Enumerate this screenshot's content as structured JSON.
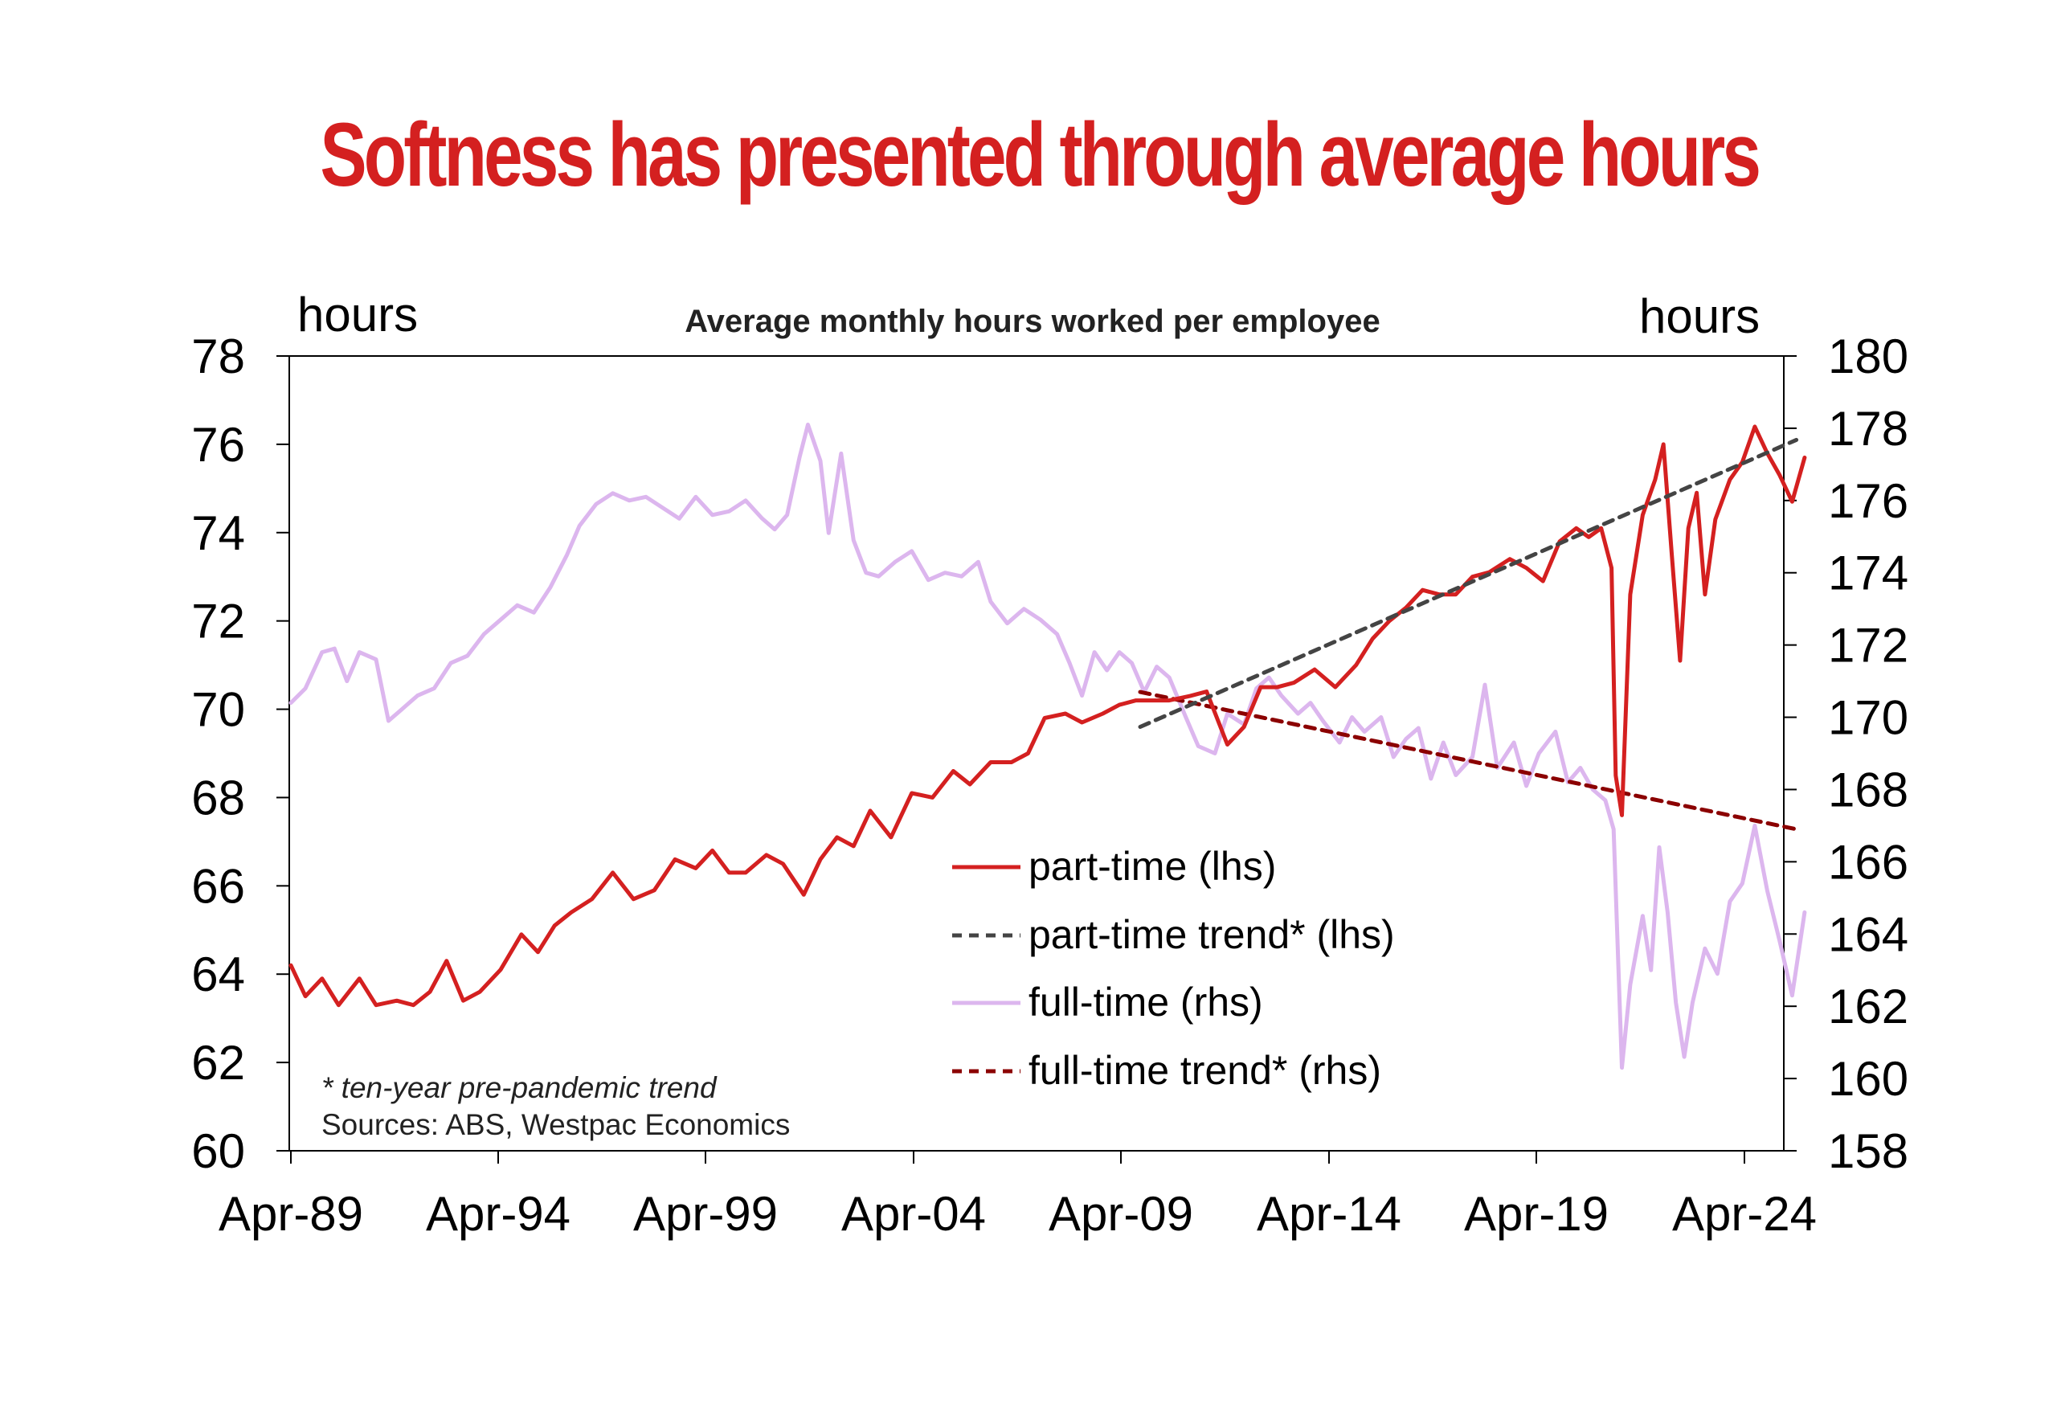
{
  "headline": "Softness has presented through average hours",
  "colors": {
    "headline": "#d42020",
    "part_time": "#d42020",
    "part_time_trend": "#444444",
    "full_time": "#dcb6ee",
    "full_time_trend": "#8b0000"
  },
  "notes": {
    "footnote": "* ten-year pre-pandemic trend",
    "sources": "Sources: ABS, Westpac Economics"
  },
  "chart_data": {
    "type": "line",
    "title": "Average monthly hours worked per employee",
    "left_axis": {
      "label": "hours",
      "range": [
        60,
        78
      ],
      "ticks": [
        "60",
        "62",
        "64",
        "66",
        "68",
        "70",
        "72",
        "74",
        "76",
        "78"
      ]
    },
    "right_axis": {
      "label": "hours",
      "range": [
        158,
        180
      ],
      "ticks": [
        "158",
        "160",
        "162",
        "164",
        "166",
        "168",
        "170",
        "172",
        "174",
        "176",
        "178",
        "180"
      ]
    },
    "x_axis": {
      "range": [
        1989.25,
        2024.25
      ],
      "ticks": [
        "Apr-89",
        "Apr-94",
        "Apr-99",
        "Apr-04",
        "Apr-09",
        "Apr-14",
        "Apr-19",
        "Apr-24"
      ]
    },
    "legend_position": "center-right",
    "series": [
      {
        "name": "part-time (lhs)",
        "axis": "left",
        "style": "solid",
        "points": [
          [
            1989.25,
            64.2
          ],
          [
            1989.6,
            63.5
          ],
          [
            1990.0,
            63.9
          ],
          [
            1990.4,
            63.3
          ],
          [
            1990.9,
            63.9
          ],
          [
            1991.3,
            63.3
          ],
          [
            1991.8,
            63.4
          ],
          [
            1992.2,
            63.3
          ],
          [
            1992.6,
            63.6
          ],
          [
            1993.0,
            64.3
          ],
          [
            1993.4,
            63.4
          ],
          [
            1993.8,
            63.6
          ],
          [
            1994.3,
            64.1
          ],
          [
            1994.8,
            64.9
          ],
          [
            1995.2,
            64.5
          ],
          [
            1995.6,
            65.1
          ],
          [
            1996.0,
            65.4
          ],
          [
            1996.5,
            65.7
          ],
          [
            1997.0,
            66.3
          ],
          [
            1997.5,
            65.7
          ],
          [
            1998.0,
            65.9
          ],
          [
            1998.5,
            66.6
          ],
          [
            1999.0,
            66.4
          ],
          [
            1999.4,
            66.8
          ],
          [
            1999.8,
            66.3
          ],
          [
            2000.2,
            66.3
          ],
          [
            2000.7,
            66.7
          ],
          [
            2001.1,
            66.5
          ],
          [
            2001.6,
            65.8
          ],
          [
            2002.0,
            66.6
          ],
          [
            2002.4,
            67.1
          ],
          [
            2002.8,
            66.9
          ],
          [
            2003.2,
            67.7
          ],
          [
            2003.7,
            67.1
          ],
          [
            2004.2,
            68.1
          ],
          [
            2004.7,
            68.0
          ],
          [
            2005.2,
            68.6
          ],
          [
            2005.6,
            68.3
          ],
          [
            2006.1,
            68.8
          ],
          [
            2006.6,
            68.8
          ],
          [
            2007.0,
            69.0
          ],
          [
            2007.4,
            69.8
          ],
          [
            2007.9,
            69.9
          ],
          [
            2008.3,
            69.7
          ],
          [
            2008.8,
            69.9
          ],
          [
            2009.2,
            70.1
          ],
          [
            2009.6,
            70.2
          ],
          [
            2010.0,
            70.2
          ],
          [
            2010.4,
            70.2
          ],
          [
            2010.9,
            70.3
          ],
          [
            2011.3,
            70.4
          ],
          [
            2011.8,
            69.2
          ],
          [
            2012.2,
            69.6
          ],
          [
            2012.6,
            70.5
          ],
          [
            2013.0,
            70.5
          ],
          [
            2013.4,
            70.6
          ],
          [
            2013.9,
            70.9
          ],
          [
            2014.4,
            70.5
          ],
          [
            2014.9,
            71.0
          ],
          [
            2015.3,
            71.6
          ],
          [
            2015.7,
            72.0
          ],
          [
            2016.1,
            72.3
          ],
          [
            2016.5,
            72.7
          ],
          [
            2016.9,
            72.6
          ],
          [
            2017.3,
            72.6
          ],
          [
            2017.7,
            73.0
          ],
          [
            2018.1,
            73.1
          ],
          [
            2018.6,
            73.4
          ],
          [
            2019.0,
            73.2
          ],
          [
            2019.4,
            72.9
          ],
          [
            2019.8,
            73.8
          ],
          [
            2020.2,
            74.1
          ],
          [
            2020.5,
            73.9
          ],
          [
            2020.8,
            74.1
          ],
          [
            2021.05,
            73.2
          ],
          [
            2021.15,
            68.5
          ],
          [
            2021.3,
            67.6
          ],
          [
            2021.5,
            72.6
          ],
          [
            2021.8,
            74.4
          ],
          [
            2022.1,
            75.2
          ],
          [
            2022.3,
            76.0
          ],
          [
            2022.5,
            73.5
          ],
          [
            2022.7,
            71.1
          ],
          [
            2022.9,
            74.1
          ],
          [
            2023.1,
            74.9
          ],
          [
            2023.3,
            72.6
          ],
          [
            2023.55,
            74.3
          ],
          [
            2023.9,
            75.2
          ],
          [
            2024.2,
            75.6
          ],
          [
            2024.5,
            76.4
          ],
          [
            2024.8,
            75.8
          ],
          [
            2025.1,
            75.3
          ],
          [
            2025.4,
            74.7
          ],
          [
            2025.7,
            75.7
          ]
        ]
      },
      {
        "name": "part-time trend* (lhs)",
        "axis": "left",
        "style": "dashed",
        "points": [
          [
            2009.7,
            69.6
          ],
          [
            2025.5,
            76.1
          ]
        ]
      },
      {
        "name": "full-time (rhs)",
        "axis": "right",
        "style": "solid",
        "points": [
          [
            1989.25,
            170.4
          ],
          [
            1989.6,
            170.8
          ],
          [
            1990.0,
            171.8
          ],
          [
            1990.3,
            171.9
          ],
          [
            1990.6,
            171.0
          ],
          [
            1990.9,
            171.8
          ],
          [
            1991.3,
            171.6
          ],
          [
            1991.6,
            169.9
          ],
          [
            1991.9,
            170.2
          ],
          [
            1992.3,
            170.6
          ],
          [
            1992.7,
            170.8
          ],
          [
            1993.1,
            171.5
          ],
          [
            1993.5,
            171.7
          ],
          [
            1993.9,
            172.3
          ],
          [
            1994.3,
            172.7
          ],
          [
            1994.7,
            173.1
          ],
          [
            1995.1,
            172.9
          ],
          [
            1995.5,
            173.6
          ],
          [
            1995.9,
            174.5
          ],
          [
            1996.2,
            175.3
          ],
          [
            1996.6,
            175.9
          ],
          [
            1997.0,
            176.2
          ],
          [
            1997.4,
            176.0
          ],
          [
            1997.8,
            176.1
          ],
          [
            1998.2,
            175.8
          ],
          [
            1998.6,
            175.5
          ],
          [
            1999.0,
            176.1
          ],
          [
            1999.4,
            175.6
          ],
          [
            1999.8,
            175.7
          ],
          [
            2000.2,
            176.0
          ],
          [
            2000.6,
            175.5
          ],
          [
            2000.9,
            175.2
          ],
          [
            2001.2,
            175.6
          ],
          [
            2001.5,
            177.2
          ],
          [
            2001.7,
            178.1
          ],
          [
            2002.0,
            177.1
          ],
          [
            2002.2,
            175.1
          ],
          [
            2002.5,
            177.3
          ],
          [
            2002.8,
            174.9
          ],
          [
            2003.1,
            174.0
          ],
          [
            2003.4,
            173.9
          ],
          [
            2003.8,
            174.3
          ],
          [
            2004.2,
            174.6
          ],
          [
            2004.6,
            173.8
          ],
          [
            2005.0,
            174.0
          ],
          [
            2005.4,
            173.9
          ],
          [
            2005.8,
            174.3
          ],
          [
            2006.1,
            173.2
          ],
          [
            2006.5,
            172.6
          ],
          [
            2006.9,
            173.0
          ],
          [
            2007.3,
            172.7
          ],
          [
            2007.7,
            172.3
          ],
          [
            2008.0,
            171.5
          ],
          [
            2008.3,
            170.6
          ],
          [
            2008.6,
            171.8
          ],
          [
            2008.9,
            171.3
          ],
          [
            2009.2,
            171.8
          ],
          [
            2009.5,
            171.5
          ],
          [
            2009.8,
            170.7
          ],
          [
            2010.1,
            171.4
          ],
          [
            2010.4,
            171.1
          ],
          [
            2010.8,
            170.0
          ],
          [
            2011.1,
            169.2
          ],
          [
            2011.5,
            169.0
          ],
          [
            2011.8,
            170.1
          ],
          [
            2012.2,
            169.8
          ],
          [
            2012.5,
            170.8
          ],
          [
            2012.8,
            171.1
          ],
          [
            2013.1,
            170.6
          ],
          [
            2013.5,
            170.1
          ],
          [
            2013.8,
            170.4
          ],
          [
            2014.1,
            169.9
          ],
          [
            2014.5,
            169.3
          ],
          [
            2014.8,
            170.0
          ],
          [
            2015.1,
            169.6
          ],
          [
            2015.5,
            170.0
          ],
          [
            2015.8,
            168.9
          ],
          [
            2016.1,
            169.4
          ],
          [
            2016.4,
            169.7
          ],
          [
            2016.7,
            168.3
          ],
          [
            2017.0,
            169.3
          ],
          [
            2017.3,
            168.4
          ],
          [
            2017.7,
            168.9
          ],
          [
            2018.0,
            170.9
          ],
          [
            2018.3,
            168.6
          ],
          [
            2018.7,
            169.3
          ],
          [
            2019.0,
            168.1
          ],
          [
            2019.3,
            169.0
          ],
          [
            2019.7,
            169.6
          ],
          [
            2020.0,
            168.2
          ],
          [
            2020.3,
            168.6
          ],
          [
            2020.6,
            168.0
          ],
          [
            2020.9,
            167.7
          ],
          [
            2021.1,
            166.9
          ],
          [
            2021.3,
            160.3
          ],
          [
            2021.5,
            162.6
          ],
          [
            2021.8,
            164.5
          ],
          [
            2022.0,
            163.0
          ],
          [
            2022.2,
            166.4
          ],
          [
            2022.4,
            164.6
          ],
          [
            2022.6,
            162.1
          ],
          [
            2022.8,
            160.6
          ],
          [
            2023.0,
            162.1
          ],
          [
            2023.3,
            163.6
          ],
          [
            2023.6,
            162.9
          ],
          [
            2023.9,
            164.9
          ],
          [
            2024.2,
            165.4
          ],
          [
            2024.5,
            167.0
          ],
          [
            2024.8,
            165.2
          ],
          [
            2025.1,
            163.8
          ],
          [
            2025.4,
            162.3
          ],
          [
            2025.7,
            164.6
          ]
        ]
      },
      {
        "name": "full-time trend* (rhs)",
        "axis": "right",
        "style": "dashed",
        "points": [
          [
            2009.7,
            170.7
          ],
          [
            2025.5,
            166.9
          ]
        ]
      }
    ]
  }
}
